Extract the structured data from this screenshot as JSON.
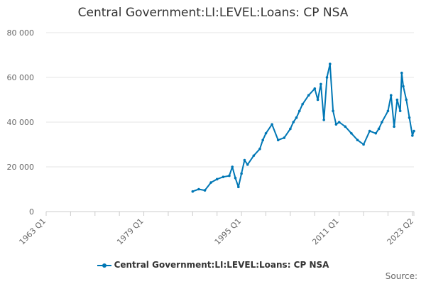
{
  "chart_data": {
    "type": "line",
    "title": "Central Government:LI:LEVEL:Loans: CP NSA",
    "xlabel": "",
    "ylabel": "",
    "ylim": [
      0,
      80000
    ],
    "yticks": [
      "0",
      "20 000",
      "40 000",
      "60 000",
      "80 000"
    ],
    "xlim": [
      "1963 Q1",
      "2023 Q2"
    ],
    "xticks": [
      "1963 Q1",
      "1979 Q1",
      "1995 Q1",
      "2011 Q1",
      "2023 Q2"
    ],
    "grid": true,
    "legend_position": "bottom",
    "series": [
      {
        "name": "Central Government:LI:LEVEL:Loans: CP NSA",
        "color": "#0077b5",
        "x": [
          "1987 Q1",
          "1988 Q1",
          "1989 Q1",
          "1990 Q1",
          "1991 Q1",
          "1992 Q1",
          "1993 Q1",
          "1993 Q3",
          "1994 Q1",
          "1994 Q3",
          "1995 Q1",
          "1995 Q3",
          "1996 Q1",
          "1997 Q1",
          "1998 Q1",
          "1998 Q3",
          "1999 Q1",
          "2000 Q1",
          "2001 Q1",
          "2002 Q1",
          "2003 Q1",
          "2003 Q3",
          "2004 Q1",
          "2004 Q3",
          "2005 Q1",
          "2006 Q1",
          "2007 Q1",
          "2007 Q3",
          "2008 Q1",
          "2008 Q3",
          "2009 Q1",
          "2009 Q3",
          "2010 Q1",
          "2010 Q3",
          "2011 Q1",
          "2012 Q1",
          "2013 Q1",
          "2014 Q1",
          "2015 Q1",
          "2016 Q1",
          "2017 Q1",
          "2017 Q3",
          "2018 Q1",
          "2019 Q1",
          "2019 Q3",
          "2020 Q1",
          "2020 Q3",
          "2021 Q1",
          "2021 Q2",
          "2021 Q3",
          "2022 Q1",
          "2022 Q3",
          "2023 Q1",
          "2023 Q2"
        ],
        "values": [
          9000,
          10000,
          9500,
          13000,
          14500,
          15500,
          16000,
          20000,
          15000,
          11000,
          17000,
          23000,
          21000,
          25000,
          28000,
          32000,
          35000,
          39000,
          32000,
          33000,
          37000,
          40000,
          42000,
          45000,
          48000,
          52000,
          55000,
          50000,
          57000,
          41000,
          60000,
          66000,
          45000,
          39000,
          40000,
          38000,
          35000,
          32000,
          30000,
          36000,
          35000,
          37000,
          40000,
          45000,
          52000,
          38000,
          50000,
          45000,
          62000,
          56000,
          50000,
          42000,
          34000,
          36000
        ]
      }
    ]
  },
  "legend": {
    "label": "Central Government:LI:LEVEL:Loans: CP NSA"
  },
  "source": {
    "label": "Source:"
  }
}
